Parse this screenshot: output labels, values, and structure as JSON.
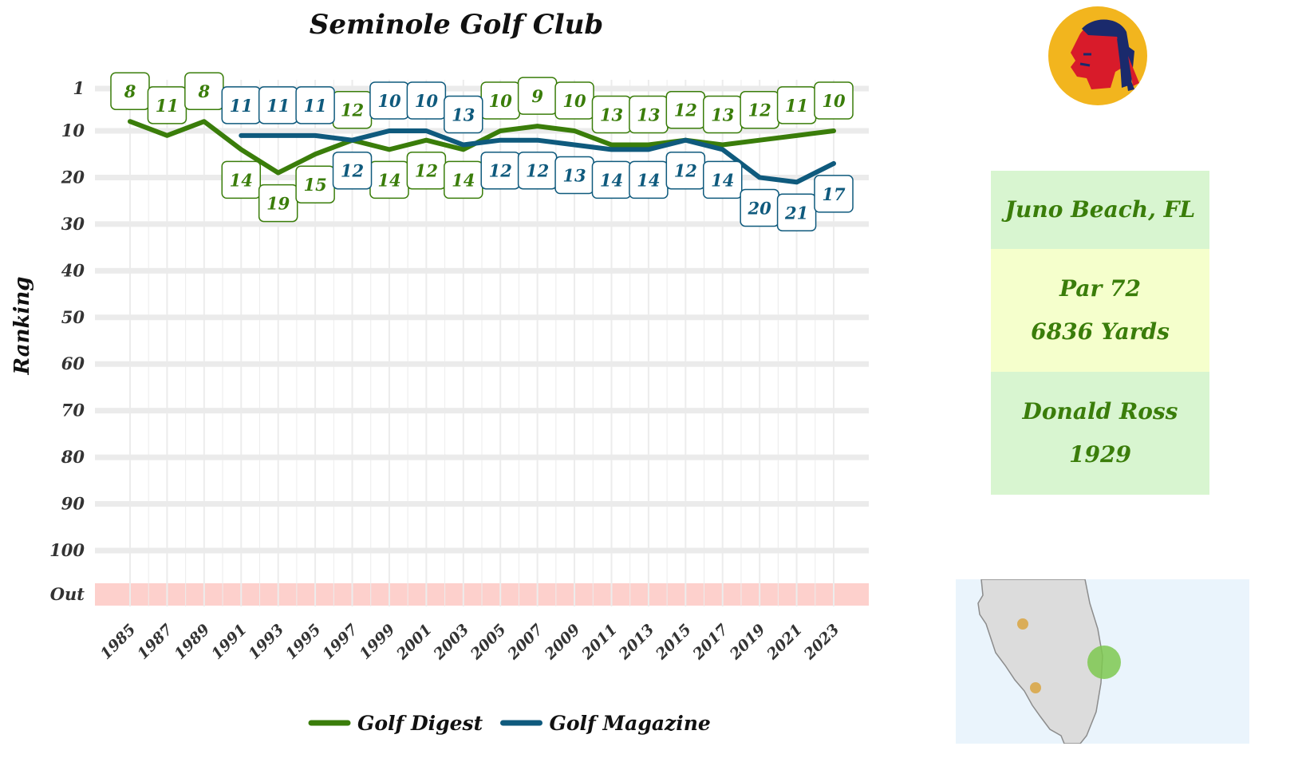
{
  "chart_data": {
    "type": "line",
    "title": "Seminole Golf Club",
    "ylabel": "Ranking",
    "xlabel": "",
    "y_ticks": [
      "1",
      "10",
      "20",
      "30",
      "40",
      "50",
      "60",
      "70",
      "80",
      "90",
      "100",
      "Out"
    ],
    "x_ticks": [
      "1985",
      "1987",
      "1989",
      "1991",
      "1993",
      "1995",
      "1997",
      "1999",
      "2001",
      "2003",
      "2005",
      "2007",
      "2009",
      "2011",
      "2013",
      "2015",
      "2017",
      "2019",
      "2021",
      "2023"
    ],
    "y_reversed": true,
    "grid": true,
    "legend_position": "bottom",
    "series": [
      {
        "name": "Golf Digest",
        "color": "#3a7d0a",
        "x": [
          1985,
          1987,
          1989,
          1991,
          1993,
          1995,
          1997,
          1999,
          2001,
          2003,
          2005,
          2007,
          2009,
          2011,
          2013,
          2015,
          2017,
          2019,
          2021,
          2023
        ],
        "values": [
          8,
          11,
          8,
          14,
          19,
          15,
          12,
          14,
          12,
          14,
          10,
          9,
          10,
          13,
          13,
          12,
          13,
          12,
          11,
          10
        ]
      },
      {
        "name": "Golf Magazine",
        "color": "#0f5a7d",
        "x": [
          1991,
          1993,
          1995,
          1997,
          1999,
          2001,
          2003,
          2005,
          2007,
          2009,
          2011,
          2013,
          2015,
          2017,
          2019,
          2021,
          2023
        ],
        "values": [
          11,
          11,
          11,
          12,
          10,
          10,
          13,
          12,
          12,
          13,
          14,
          14,
          12,
          14,
          20,
          21,
          17
        ]
      }
    ]
  },
  "info": {
    "location": "Juno Beach, FL",
    "par": "Par 72",
    "yards": "6836 Yards",
    "architect": "Donald Ross",
    "year": "1929"
  },
  "colors": {
    "info_box_1": "#d8f5d0",
    "info_box_2": "#f5ffcc",
    "info_box_3": "#d8f5d0",
    "out_band": "#fdd0cc",
    "map_water": "#eaf4fc",
    "map_land": "#dcdcdc"
  },
  "icons": {
    "logo": "native-head-logo-icon",
    "map": "florida-map-icon"
  }
}
